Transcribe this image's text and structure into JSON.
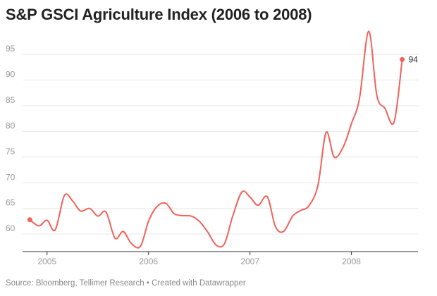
{
  "title": "S&P GSCI Agriculture Index (2006 to 2008)",
  "source": "Source: Bloomberg, Tellimer Research • Created with Datawrapper",
  "colors": {
    "line": "#f0625b",
    "grid": "#e6e6e6",
    "axis": "#333333",
    "tick_text": "#999999"
  },
  "chart_data": {
    "type": "line",
    "title": "S&P GSCI Agriculture Index (2006 to 2008)",
    "xlabel": "",
    "ylabel": "",
    "xlim": [
      2004.8,
      2008.6
    ],
    "ylim": [
      57,
      99
    ],
    "x_ticks": [
      2005,
      2006,
      2007,
      2008
    ],
    "x_tick_labels": [
      "2005",
      "2006",
      "2007",
      "2008"
    ],
    "y_ticks": [
      60,
      65,
      70,
      75,
      80,
      85,
      90,
      95
    ],
    "y_tick_labels": [
      "60",
      "65",
      "70",
      "75",
      "80",
      "85",
      "90",
      "95"
    ],
    "grid": "horizontal",
    "end_label": "94",
    "series": [
      {
        "x": [
          2004.83,
          2004.92,
          2005.0,
          2005.08,
          2005.17,
          2005.25,
          2005.33,
          2005.42,
          2005.5,
          2005.58,
          2005.67,
          2005.75,
          2005.83,
          2005.92,
          2006.0,
          2006.08,
          2006.17,
          2006.25,
          2006.33,
          2006.42,
          2006.5,
          2006.58,
          2006.67,
          2006.75,
          2006.83,
          2006.92,
          2007.0,
          2007.08,
          2007.17,
          2007.25,
          2007.33,
          2007.42,
          2007.5,
          2007.58,
          2007.67,
          2007.75,
          2007.83,
          2007.92,
          2008.0,
          2008.08,
          2008.17,
          2008.25,
          2008.33,
          2008.42,
          2008.5
        ],
        "y": [
          62.8,
          61.6,
          62.7,
          60.8,
          67.5,
          66.5,
          64.5,
          65.0,
          63.5,
          64.3,
          59.2,
          60.5,
          58.2,
          57.6,
          62.5,
          65.3,
          66.0,
          64.0,
          63.6,
          63.5,
          62.5,
          60.5,
          57.8,
          58.2,
          63.5,
          68.2,
          67.2,
          65.6,
          67.3,
          61.5,
          60.5,
          63.5,
          64.6,
          65.5,
          69.5,
          79.8,
          75.0,
          77.0,
          81.5,
          86.5,
          99.5,
          87.0,
          84.5,
          81.8,
          94.0
        ]
      }
    ]
  }
}
